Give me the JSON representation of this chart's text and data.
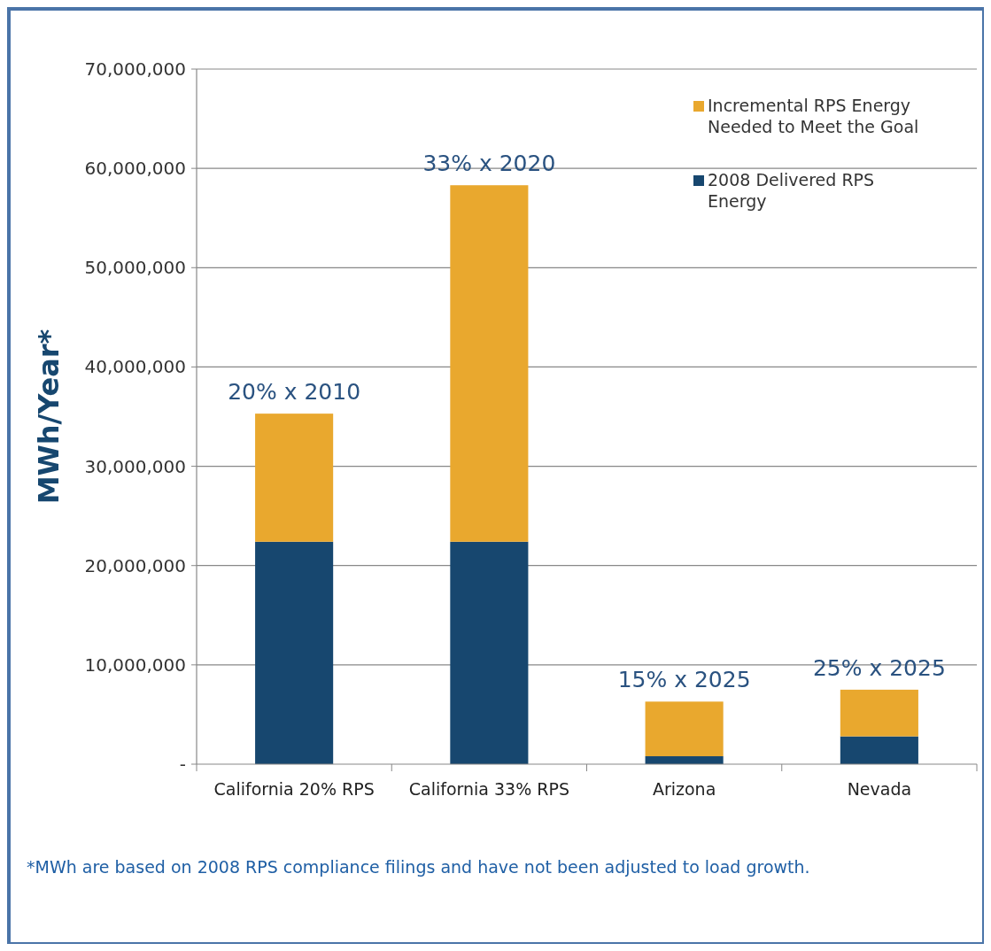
{
  "chart_data": {
    "type": "bar",
    "stacked": true,
    "ylabel": "MWh/Year*",
    "categories": [
      "California 20% RPS",
      "California 33% RPS",
      "Arizona",
      "Nevada"
    ],
    "series": [
      {
        "name": "2008 Delivered RPS Energy",
        "color": "#17476f",
        "values": [
          22400000,
          22400000,
          800000,
          2800000
        ]
      },
      {
        "name": "Incremental RPS Energy Needed to Meet the Goal",
        "color": "#e9a82e",
        "values": [
          12900000,
          35900000,
          5500000,
          4700000
        ]
      }
    ],
    "ylim": [
      0,
      70000000
    ],
    "yticks": [
      {
        "value": 0,
        "label": "-"
      },
      {
        "value": 10000000,
        "label": "10,000,000"
      },
      {
        "value": 20000000,
        "label": "20,000,000"
      },
      {
        "value": 30000000,
        "label": "30,000,000"
      },
      {
        "value": 40000000,
        "label": "40,000,000"
      },
      {
        "value": 50000000,
        "label": "50,000,000"
      },
      {
        "value": 60000000,
        "label": "60,000,000"
      },
      {
        "value": 70000000,
        "label": "70,000,000"
      }
    ],
    "grid": "y",
    "legend": "top right",
    "annotations": [
      {
        "text": "20% x 2010",
        "x": "California 20% RPS",
        "y": 35300000
      },
      {
        "text": "33% x 2020",
        "x": "California 33% RPS",
        "y": 58300000
      },
      {
        "text": "15% x 2025",
        "x": "Arizona",
        "y": 6300000
      },
      {
        "text": "25% x 2025",
        "x": "Nevada",
        "y": 7500000
      },
      "*MWh are based on 2008 RPS compliance filings and have not been adjusted to load growth."
    ]
  }
}
